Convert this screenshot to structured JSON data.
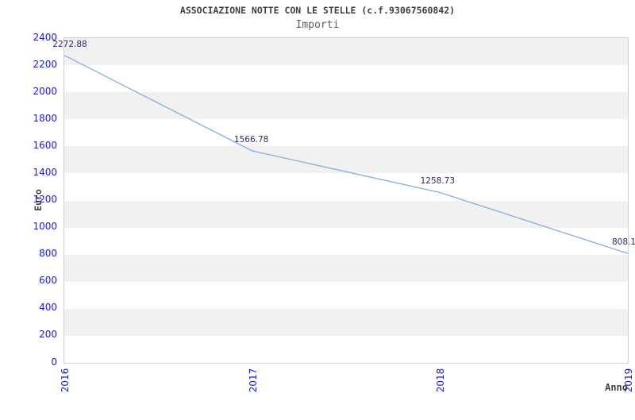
{
  "chart_data": {
    "type": "line",
    "title": "ASSOCIAZIONE NOTTE CON LE STELLE (c.f.93067560842)",
    "subtitle": "Importi",
    "xlabel": "Anno",
    "ylabel": "Euro",
    "x": [
      "2016",
      "2017",
      "2018",
      "2019"
    ],
    "series": [
      {
        "name": "Importi",
        "values": [
          2272.88,
          1566.78,
          1258.73,
          808.1
        ],
        "point_labels": [
          "2272.88",
          "1566.78",
          "1258.73",
          "808.1"
        ]
      }
    ],
    "ylim": [
      0,
      2400
    ],
    "ytick_step": 200,
    "yticks": [
      0,
      200,
      400,
      600,
      800,
      1000,
      1200,
      1400,
      1600,
      1800,
      2000,
      2200,
      2400
    ],
    "grid": "alternating-horizontal-bands",
    "legend": "none",
    "colors": {
      "line": "#7fb0e2",
      "tick_label": "#1a1ad8",
      "value_label": "#2b2b70",
      "band_gray": "#f1f1f1",
      "band_white": "#ffffff",
      "plot_border": "#cfcfcf",
      "title": "#3f3f3f",
      "subtitle": "#5e5e5e",
      "axis_label": "#3f3f3f",
      "background": "#ffffff"
    }
  }
}
